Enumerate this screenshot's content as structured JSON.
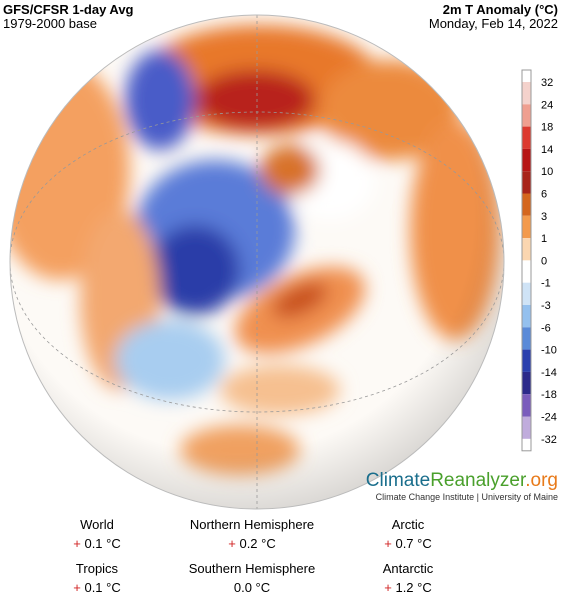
{
  "header": {
    "title": "GFS/CFSR 1-day Avg",
    "subtitle": "1979-2000 base",
    "variable": "2m T Anomaly (°C)",
    "date": "Monday, Feb 14, 2022"
  },
  "colorbar": {
    "ticks": [
      "32",
      "24",
      "18",
      "14",
      "10",
      "6",
      "3",
      "1",
      "0",
      "-1",
      "-3",
      "-6",
      "-10",
      "-14",
      "-18",
      "-24",
      "-32"
    ],
    "colors": [
      "#f4d2cc",
      "#ef9f90",
      "#dc3a30",
      "#b71616",
      "#a8241a",
      "#d4661e",
      "#f39a4c",
      "#fbd6b0",
      "#ffffff",
      "#cfe3f6",
      "#94c0ee",
      "#5a8ad8",
      "#2a3fae",
      "#2c2a8a",
      "#7a5cbc",
      "#c0acdc"
    ]
  },
  "logo": {
    "part1": "Climate",
    "part2": "Reanalyzer",
    "part3": ".org",
    "tagline": "Climate Change Institute | University of Maine"
  },
  "stats": [
    {
      "label": "World",
      "sign": "+",
      "value": "0.1 °C"
    },
    {
      "label": "Northern Hemisphere",
      "sign": "+",
      "value": "0.2 °C"
    },
    {
      "label": "Arctic",
      "sign": "+",
      "value": "0.7 °C"
    },
    {
      "label": "Tropics",
      "sign": "+",
      "value": "0.1 °C"
    },
    {
      "label": "Southern Hemisphere",
      "value": "0.0 °C"
    },
    {
      "label": "Antarctic",
      "sign": "+",
      "value": "1.2 °C"
    }
  ]
}
